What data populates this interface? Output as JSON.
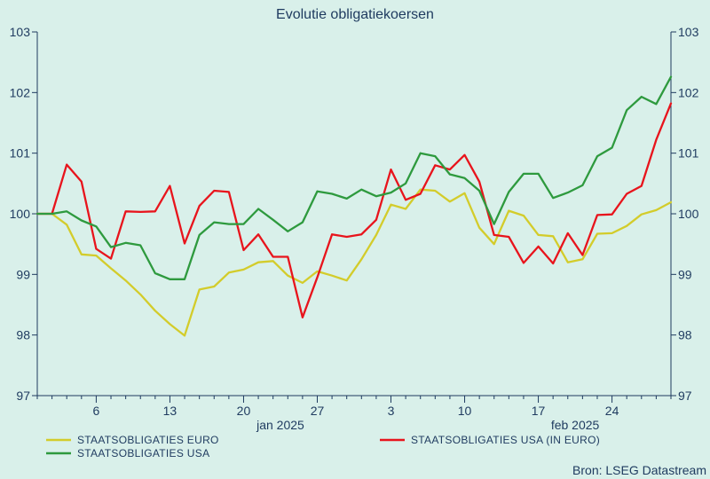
{
  "chart_data": {
    "type": "line",
    "title": "Evolutie obligatiekoersen",
    "source": "Bron: LSEG Datastream",
    "ylim": [
      97,
      103
    ],
    "yticks": [
      97,
      98,
      99,
      100,
      101,
      102,
      103
    ],
    "x_tick_labels": [
      {
        "index": 4,
        "label": "6"
      },
      {
        "index": 9,
        "label": "13"
      },
      {
        "index": 14,
        "label": "20"
      },
      {
        "index": 19,
        "label": "27"
      },
      {
        "index": 24,
        "label": "3"
      },
      {
        "index": 29,
        "label": "10"
      },
      {
        "index": 34,
        "label": "17"
      },
      {
        "index": 39,
        "label": "24"
      }
    ],
    "month_labels": [
      {
        "index": 16.5,
        "label": "jan 2025"
      },
      {
        "index": 36.5,
        "label": "feb 2025"
      }
    ],
    "grid": false,
    "legend_position": "bottom",
    "colors": {
      "background": "#d9f0ea",
      "axis": "#1e3a5f",
      "euro": "#d3cc2b",
      "usa_eur": "#e8141c",
      "usa": "#2e9a3e"
    },
    "series": [
      {
        "name": "STAATSOBLIGATIES EURO",
        "color": "#d3cc2b",
        "values": [
          100.0,
          100.0,
          99.82,
          99.33,
          99.31,
          99.1,
          98.9,
          98.67,
          98.4,
          98.18,
          97.99,
          98.75,
          98.8,
          99.03,
          99.08,
          99.2,
          99.22,
          98.98,
          98.86,
          99.05,
          98.98,
          98.9,
          99.25,
          99.65,
          100.15,
          100.08,
          100.4,
          100.38,
          100.2,
          100.34,
          99.77,
          99.5,
          100.05,
          99.97,
          99.65,
          99.63,
          99.2,
          99.25,
          99.67,
          99.68,
          99.8,
          99.99,
          100.06,
          100.19
        ]
      },
      {
        "name": "STAATSOBLIGATIES USA (IN EURO)",
        "color": "#e8141c",
        "values": [
          100.0,
          100.0,
          100.81,
          100.53,
          99.42,
          99.26,
          100.04,
          100.03,
          100.04,
          100.46,
          99.51,
          100.13,
          100.38,
          100.36,
          99.4,
          99.66,
          99.29,
          99.29,
          98.29,
          98.95,
          99.66,
          99.62,
          99.66,
          99.9,
          100.73,
          100.23,
          100.33,
          100.8,
          100.73,
          100.97,
          100.53,
          99.65,
          99.62,
          99.19,
          99.46,
          99.18,
          99.68,
          99.32,
          99.98,
          99.99,
          100.33,
          100.46,
          101.22,
          101.82
        ]
      },
      {
        "name": "STAATSOBLIGATIES USA",
        "color": "#2e9a3e",
        "values": [
          100.0,
          100.0,
          100.04,
          99.89,
          99.79,
          99.45,
          99.52,
          99.48,
          99.02,
          98.92,
          98.92,
          99.65,
          99.86,
          99.83,
          99.83,
          100.08,
          99.9,
          99.71,
          99.86,
          100.37,
          100.33,
          100.25,
          100.4,
          100.29,
          100.35,
          100.5,
          101.0,
          100.95,
          100.65,
          100.59,
          100.38,
          99.83,
          100.36,
          100.66,
          100.66,
          100.26,
          100.35,
          100.47,
          100.95,
          101.09,
          101.71,
          101.93,
          101.81,
          102.26
        ]
      }
    ]
  }
}
